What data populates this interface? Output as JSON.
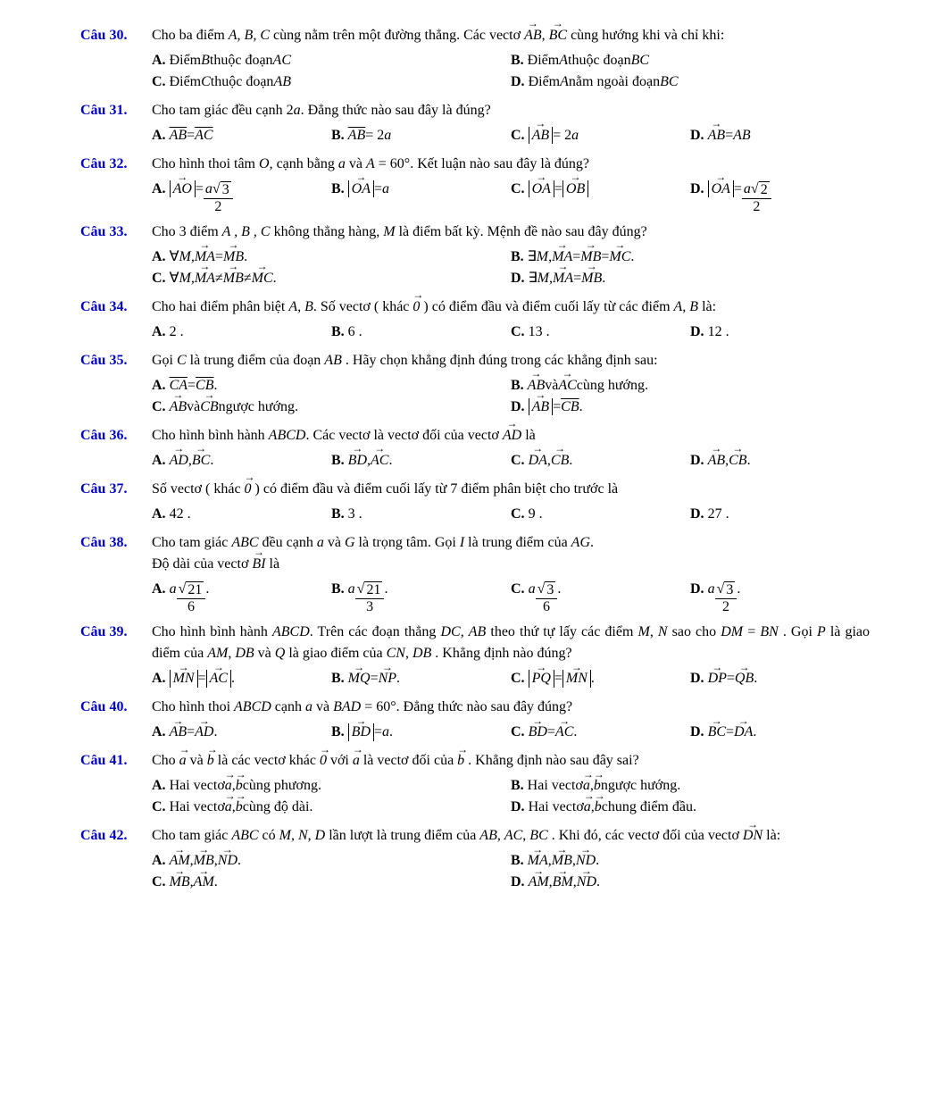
{
  "label_color": "#0000cc",
  "body_font": "Times New Roman",
  "base_fontsize": 16,
  "questions": {
    "q30": {
      "num": "Câu 30.",
      "stem_parts": [
        "Cho ba điểm ",
        "A, B, C",
        " cùng nằm trên một đường thẳng. Các vectơ ",
        "AB",
        ", ",
        "BC",
        " cùng hướng khi và chỉ khi:"
      ],
      "optA_pre": "Điểm ",
      "optA_i": "B",
      "optA_mid": " thuộc đoạn ",
      "optA_i2": "AC",
      "optB_pre": "Điểm ",
      "optB_i": "A",
      "optB_mid": " thuộc đoạn ",
      "optB_i2": "BC",
      "optC_pre": "Điểm ",
      "optC_i": "C",
      "optC_mid": " thuộc đoạn ",
      "optC_i2": "AB",
      "optD_pre": "Điểm ",
      "optD_i": "A",
      "optD_mid": " nằm ngoài đoạn ",
      "optD_i2": "BC"
    },
    "q31": {
      "num": "Câu 31.",
      "stem": "Cho tam giác đều cạnh 2",
      "stem_a": "a",
      "stem2": ". Đẳng thức nào sau đây là đúng?",
      "A_l": "AB",
      "A_eq": " = ",
      "A_r": "AC",
      "B_l": "AB",
      "B_eq": " = 2",
      "B_r": "a",
      "C_in": "AB",
      "C_eq": " = 2",
      "C_r": "a",
      "D_l": "AB",
      "D_eq": " = ",
      "D_r": "AB"
    },
    "q32": {
      "num": "Câu 32.",
      "stem1": "Cho hình thoi tâm ",
      "O": "O",
      "stem2": ", cạnh bằng ",
      "a": "a",
      "stem3": " và ",
      "Aeq": "A",
      "eq": " = 60°",
      "stem4": ". Kết luận nào sau đây là đúng?",
      "A_abs": "AO",
      "A_num_a": "a",
      "A_num_rad": "3",
      "A_den": "2",
      "B_abs": "OA",
      "B_r": "a",
      "C_l": "OA",
      "C_r": "OB",
      "D_abs": "OA",
      "D_num_a": "a",
      "D_num_rad": "2",
      "D_den": "2"
    },
    "q33": {
      "num": "Câu 33.",
      "stem1": "Cho 3 điểm ",
      "ABC": "A , B , C",
      "stem2": " không thẳng hàng, ",
      "M": "M",
      "stem3": " là điểm bất kỳ. Mệnh đề nào sau đây đúng?",
      "A_pre": "∀",
      "A_M": "M",
      "A_c": ", ",
      "A_l": "MA",
      "A_eq": " = ",
      "A_r": "MB",
      "A_dot": " .",
      "B_pre": "∃",
      "B_M": "M",
      "B_c": ", ",
      "B_l": "MA",
      "B_eq": " = ",
      "B_m": "MB",
      "B_eq2": " = ",
      "B_r": "MC",
      "B_dot": " .",
      "C_pre": "∀",
      "C_M": "M",
      "C_c": ", ",
      "C_l": "MA",
      "C_ne": " ≠ ",
      "C_m": "MB",
      "C_ne2": " ≠ ",
      "C_r": "MC",
      "C_dot": " .",
      "D_pre": "∃",
      "D_M": "M",
      "D_c": ", ",
      "D_l": "MA",
      "D_eq": " = ",
      "D_r": "MB",
      "D_dot": " ."
    },
    "q34": {
      "num": "Câu 34.",
      "stem1": "Cho hai điểm phân biệt ",
      "AB": "A, B",
      "stem2": ". Số vectơ ( khác ",
      "zero": "0",
      "stem3": " ) có điểm đầu và điểm cuối lấy từ các điểm ",
      "AB2": "A, B",
      "stem4": " là:",
      "A": "2 .",
      "B": "6 .",
      "C": "13 .",
      "D": "12 ."
    },
    "q35": {
      "num": "Câu 35.",
      "stem1": "Gọi ",
      "C": "C",
      "stem2": " là trung điểm của đoạn ",
      "AB": "AB",
      "stem3": " . Hãy chọn khẳng định đúng trong các khẳng định sau:",
      "A_l": "CA",
      "A_eq": " = ",
      "A_r": "CB",
      "A_dot": " .",
      "B_l": "AB",
      "B_and": " và ",
      "B_r": "AC",
      "B_txt": " cùng hướng.",
      "C_l": "AB",
      "C_and": " và ",
      "C_r": "CB",
      "C_txt": " ngược hướng.",
      "D_abs": "AB",
      "D_eq": " = ",
      "D_r": "CB",
      "D_dot": " ."
    },
    "q36": {
      "num": "Câu 36.",
      "stem1": "Cho hình bình hành ",
      "ABCD": "ABCD",
      "stem2": ". Các vectơ là vectơ đối của vectơ ",
      "AD": "AD",
      "stem3": " là",
      "A_l": "AD",
      "sep": ", ",
      "A_r": "BC",
      "dot": " .",
      "B_l": "BD",
      "B_r": "AC",
      "C_l": "DA",
      "C_r": "CB",
      "D_l": "AB",
      "D_r": "CB"
    },
    "q37": {
      "num": "Câu 37.",
      "stem1": "Số vectơ ( khác ",
      "zero": "0",
      "stem2": " ) có điểm đầu và điểm cuối lấy từ 7 điểm phân biệt cho trước là",
      "A": "42 .",
      "B": "3 .",
      "C": "9 .",
      "D": "27 ."
    },
    "q38": {
      "num": "Câu 38.",
      "stem1": "Cho tam giác ",
      "ABC": "ABC",
      "stem2": " đều cạnh ",
      "a": "a",
      "stem3": " và ",
      "G": "G",
      "stem4": " là trọng tâm. Gọi ",
      "I": "I",
      "stem5": " là trung điểm của ",
      "AG": "AG",
      "stem6": ".",
      "stem7": "Độ dài của vectơ ",
      "BI": "BI",
      "stem8": " là",
      "A_a": "a",
      "A_rad": "21",
      "A_den": "6",
      "dot": " .",
      "B_a": "a",
      "B_rad": "21",
      "B_den": "3",
      "C_a": "a",
      "C_rad": "3",
      "C_den": "6",
      "D_a": "a",
      "D_rad": "3",
      "D_den": "2"
    },
    "q39": {
      "num": "Câu 39.",
      "stem1": "Cho hình bình hành ",
      "ABCD": "ABCD",
      "stem2": ". Trên các đoạn thẳng ",
      "DC": "DC",
      "c1": ", ",
      "AB": "AB",
      "stem3": " theo thứ tự lấy các điểm ",
      "M": "M",
      "c2": ", ",
      "N": "N",
      "stem4": "sao cho ",
      "DM": "DM",
      "eq": " = ",
      "BN": "BN",
      "stem5": " . Gọi ",
      "P": "P",
      "stem6": " là giao điểm của ",
      "AM": "AM",
      "c3": ", ",
      "DB": "DB",
      "stem7": " và ",
      "Q": "Q",
      "stem8": " là giao điểm của ",
      "CN": "CN",
      "c4": ", ",
      "DB2": "DB",
      "dot1": " .",
      "stem9": "Khẳng định nào đúng?",
      "A_l": "MN",
      "A_eq": " = ",
      "A_r": "AC",
      "A_dot": " .",
      "B_l": "MQ",
      "B_eq": " = ",
      "B_r": "NP",
      "B_dot": " .",
      "C_l": "PQ",
      "C_eq": " = ",
      "C_r": "MN",
      "C_dot": " .",
      "D_l": "DP",
      "D_eq": " = ",
      "D_r": "QB",
      "D_dot": " ."
    },
    "q40": {
      "num": "Câu 40.",
      "stem1": "Cho hình thoi ",
      "ABCD": "ABCD",
      "stem2": " cạnh ",
      "a": "a",
      "stem3": " và ",
      "BAD": "BAD",
      "eq": " = 60°",
      "stem4": ". Đẳng thức nào sau đây đúng?",
      "A_l": "AB",
      "A_eq": " = ",
      "A_r": "AD",
      "A_dot": ".",
      "B_abs": "BD",
      "B_eq": " = ",
      "B_r": "a",
      "B_dot": ".",
      "C_l": "BD",
      "C_eq": " = ",
      "C_r": "AC",
      "C_dot": ".",
      "D_l": "BC",
      "D_eq": " = ",
      "D_r": "DA",
      "D_dot": "."
    },
    "q41": {
      "num": "Câu 41.",
      "stem1": "Cho ",
      "a": "a",
      "and": " và ",
      "b": "b",
      "stem2": " là các vectơ khác ",
      "zero": "0",
      "stem3": " với ",
      "a2": "a",
      "stem4": " là vectơ đối của ",
      "b2": "b",
      "stem5": " . Khẳng định nào sau đây sai?",
      "A_pre": "Hai vectơ ",
      "A_a": "a",
      "A_c": ", ",
      "A_b": "b",
      "A_txt": " cùng phương.",
      "B_pre": "Hai vectơ ",
      "B_a": "a",
      "B_c": ", ",
      "B_b": "b",
      "B_txt": " ngược hướng.",
      "C_pre": "Hai vectơ ",
      "C_a": "a",
      "C_c": ", ",
      "C_b": "b",
      "C_txt": " cùng độ dài.",
      "D_pre": "Hai vectơ ",
      "D_a": "a",
      "D_c": ", ",
      "D_b": "b",
      "D_txt": " chung điểm đầu."
    },
    "q42": {
      "num": "Câu 42.",
      "stem1": "Cho tam giác ",
      "ABC": "ABC",
      "stem2": " có ",
      "M": "M",
      "c1": ", ",
      "N": "N",
      "c2": ", ",
      "D": "D",
      "stem3": " lần lượt là trung điểm của ",
      "AB": "AB",
      "c3": ", ",
      "AC": "AC",
      "c4": ", ",
      "BC": "BC",
      "stem4": " . Khi đó, các vectơ đối của vectơ ",
      "DN": "DN",
      "stem5": " là:",
      "A_l": "AM",
      "sep": ", ",
      "A_m": "MB",
      "A_r": "ND",
      "dot": " .",
      "B_l": "MA",
      "B_m": "MB",
      "B_r": "ND",
      "C_l": "MB",
      "C_r": "AM",
      "D_l": "AM",
      "D_m": "BM",
      "D_r": "ND"
    }
  },
  "labels": {
    "A": "A.",
    "B": "B.",
    "C": "C.",
    "D": "D."
  }
}
